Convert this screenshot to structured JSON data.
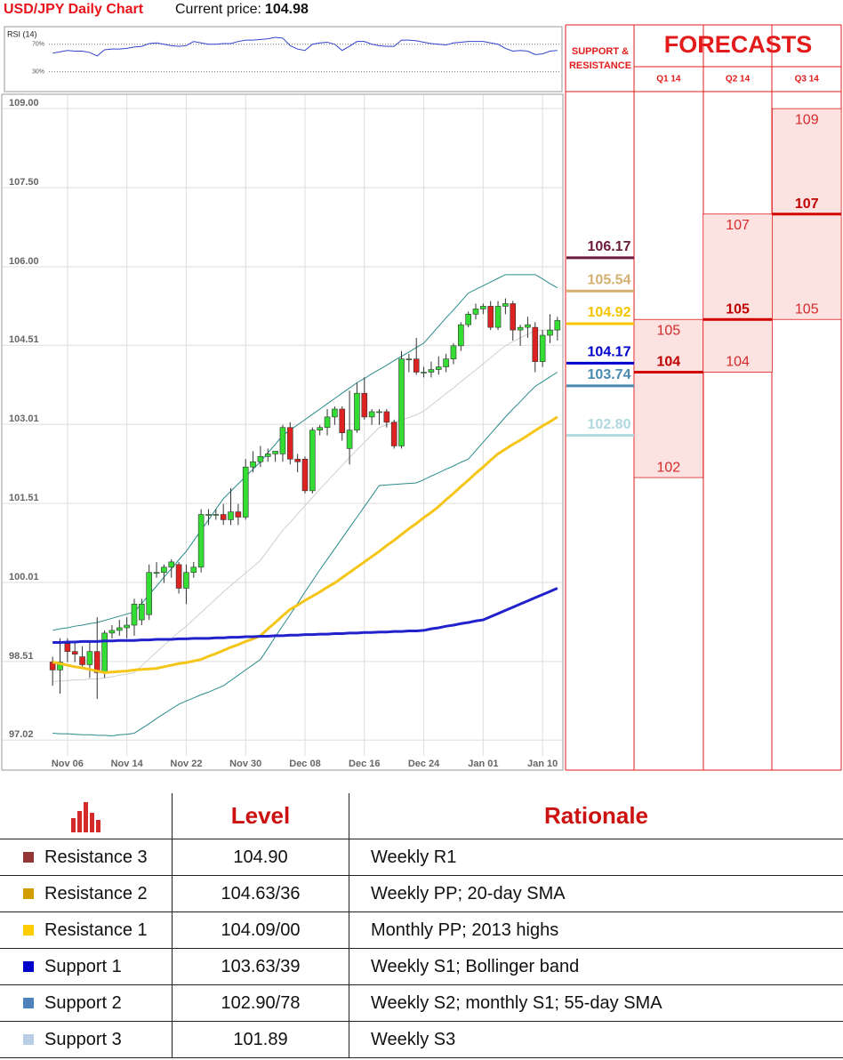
{
  "header": {
    "title": "USD/JPY Daily Chart",
    "price_label": "Current price:",
    "price": 104.98
  },
  "chart_data": [
    {
      "type": "candlestick",
      "categories": [
        null,
        null,
        "Nov 06",
        null,
        null,
        null,
        null,
        null,
        null,
        null,
        "Nov 14",
        null,
        null,
        null,
        null,
        null,
        null,
        null,
        "Nov 22",
        null,
        null,
        null,
        null,
        null,
        null,
        null,
        "Nov 30",
        null,
        null,
        null,
        null,
        null,
        null,
        null,
        "Dec 08",
        null,
        null,
        null,
        null,
        null,
        null,
        null,
        "Dec 16",
        null,
        null,
        null,
        null,
        null,
        null,
        null,
        "Dec 24",
        null,
        null,
        null,
        null,
        null,
        null,
        null,
        "Jan 01",
        null,
        null,
        null,
        null,
        null,
        null,
        null,
        "Jan 10",
        null,
        null
      ],
      "open": [
        98.5,
        98.35,
        98.85,
        98.7,
        98.6,
        98.45,
        98.7,
        98.3,
        99.05,
        99.1,
        99.15,
        99.2,
        99.3,
        99.4,
        100.2,
        100.2,
        100.3,
        100.35,
        99.9,
        100.2,
        100.3,
        101.3,
        101.3,
        101.3,
        101.2,
        101.35,
        101.25,
        102.2,
        102.3,
        102.4,
        102.45,
        102.45,
        102.95,
        102.35,
        102.35,
        101.75,
        102.9,
        102.95,
        103.15,
        103.3,
        102.55,
        102.9,
        103.6,
        103.15,
        103.25,
        103.25,
        103.05,
        102.6,
        104.25,
        104.25,
        104.0,
        104.0,
        104.05,
        104.1,
        104.25,
        104.5,
        104.9,
        105.1,
        105.2,
        105.25,
        104.85,
        105.25,
        105.3,
        104.8,
        104.85,
        104.85,
        104.2,
        104.7,
        104.8
      ],
      "high": [
        98.6,
        98.95,
        98.95,
        98.9,
        98.8,
        98.9,
        99.35,
        99.1,
        99.2,
        99.3,
        99.35,
        99.7,
        99.7,
        100.35,
        100.4,
        100.35,
        100.45,
        100.4,
        100.35,
        100.4,
        101.4,
        101.4,
        101.4,
        101.5,
        101.8,
        101.5,
        102.35,
        102.5,
        102.6,
        102.55,
        102.5,
        103.0,
        103.05,
        102.45,
        102.4,
        102.95,
        103.0,
        103.3,
        103.35,
        103.35,
        103.65,
        103.8,
        103.9,
        103.3,
        103.3,
        103.3,
        103.1,
        104.4,
        104.35,
        104.65,
        104.1,
        104.2,
        104.3,
        104.35,
        104.55,
        104.95,
        105.15,
        105.3,
        105.3,
        105.35,
        105.35,
        105.4,
        105.35,
        104.9,
        105.05,
        104.95,
        104.8,
        105.1,
        105.05
      ],
      "low": [
        98.05,
        97.9,
        98.5,
        98.5,
        98.4,
        98.2,
        97.8,
        98.2,
        98.95,
        99.0,
        98.95,
        99.0,
        99.2,
        99.3,
        100.1,
        100.0,
        100.1,
        99.8,
        99.6,
        100.1,
        100.2,
        101.1,
        101.2,
        101.1,
        101.1,
        101.1,
        101.2,
        102.1,
        102.2,
        102.3,
        102.3,
        102.3,
        102.25,
        102.1,
        101.7,
        101.7,
        102.8,
        102.8,
        103.0,
        102.7,
        102.25,
        102.85,
        103.1,
        103.0,
        103.0,
        102.95,
        102.55,
        102.55,
        104.0,
        103.95,
        103.9,
        103.9,
        103.95,
        104.0,
        104.15,
        104.4,
        104.85,
        105.0,
        105.1,
        104.8,
        104.8,
        105.1,
        104.6,
        104.5,
        104.65,
        104.0,
        104.1,
        104.55,
        104.6
      ],
      "close": [
        98.35,
        98.5,
        98.7,
        98.65,
        98.45,
        98.7,
        98.3,
        99.05,
        99.1,
        99.15,
        99.2,
        99.6,
        99.6,
        100.2,
        100.2,
        100.3,
        100.4,
        99.9,
        100.2,
        100.3,
        101.3,
        101.3,
        101.3,
        101.2,
        101.35,
        101.25,
        102.2,
        102.3,
        102.4,
        102.45,
        102.5,
        102.95,
        102.35,
        102.3,
        101.75,
        102.9,
        102.95,
        103.15,
        103.3,
        102.85,
        102.9,
        103.6,
        103.15,
        103.25,
        103.25,
        103.05,
        102.6,
        104.25,
        104.25,
        104.0,
        104.0,
        104.05,
        104.1,
        104.25,
        104.5,
        104.9,
        105.1,
        105.2,
        105.25,
        104.85,
        105.25,
        105.3,
        104.8,
        104.85,
        104.9,
        104.2,
        104.7,
        104.8,
        104.98
      ],
      "up_color": "#33dd33",
      "down_color": "#dd2222",
      "overlays": [
        {
          "color": "#cfcfcf",
          "width": 1,
          "values": [
            98.13,
            98.14,
            98.15,
            98.16,
            98.16,
            98.18,
            98.18,
            98.2,
            98.22,
            98.25,
            98.27,
            98.3,
            98.43,
            98.56,
            98.69,
            98.82,
            98.94,
            99.07,
            99.18,
            99.31,
            99.44,
            99.57,
            99.7,
            99.83,
            99.95,
            100.07,
            100.19,
            100.31,
            100.43,
            100.62,
            100.81,
            101.0,
            101.15,
            101.31,
            101.47,
            101.62,
            101.78,
            101.93,
            102.08,
            102.23,
            102.38,
            102.53,
            102.67,
            102.81,
            102.95,
            103.0,
            103.05,
            103.09,
            103.14,
            103.19,
            103.26,
            103.37,
            103.48,
            103.6,
            103.7,
            103.82,
            103.93,
            104.04,
            104.16,
            104.27,
            104.39,
            104.5,
            104.58,
            104.65,
            104.72,
            104.79,
            104.8,
            104.8,
            104.8
          ]
        },
        {
          "color": "#2a8a8a",
          "width": 1,
          "values": [
            99.1,
            99.13,
            99.15,
            99.18,
            99.2,
            99.23,
            99.25,
            99.29,
            99.33,
            99.37,
            99.41,
            99.45,
            99.61,
            99.78,
            99.94,
            100.11,
            100.27,
            100.44,
            100.6,
            100.8,
            101.0,
            101.2,
            101.4,
            101.6,
            101.74,
            101.88,
            102.02,
            102.16,
            102.3,
            102.47,
            102.63,
            102.8,
            102.9,
            103.0,
            103.1,
            103.2,
            103.3,
            103.4,
            103.5,
            103.6,
            103.7,
            103.8,
            103.88,
            103.97,
            104.05,
            104.13,
            104.22,
            104.3,
            104.38,
            104.47,
            104.55,
            104.71,
            104.87,
            105.03,
            105.18,
            105.34,
            105.5,
            105.57,
            105.64,
            105.71,
            105.78,
            105.85,
            105.85,
            105.85,
            105.85,
            105.85,
            105.77,
            105.68,
            105.6
          ]
        },
        {
          "color": "#2a8a8a",
          "width": 1,
          "values": [
            97.15,
            97.14,
            97.14,
            97.13,
            97.12,
            97.12,
            97.11,
            97.11,
            97.1,
            97.12,
            97.13,
            97.15,
            97.24,
            97.33,
            97.43,
            97.52,
            97.61,
            97.7,
            97.76,
            97.82,
            97.88,
            97.93,
            97.99,
            98.05,
            98.15,
            98.25,
            98.35,
            98.45,
            98.55,
            98.76,
            98.98,
            99.19,
            99.4,
            99.61,
            99.83,
            100.04,
            100.25,
            100.45,
            100.65,
            100.85,
            101.05,
            101.25,
            101.45,
            101.65,
            101.85,
            101.86,
            101.87,
            101.88,
            101.89,
            101.9,
            101.96,
            102.03,
            102.09,
            102.16,
            102.22,
            102.29,
            102.35,
            102.51,
            102.67,
            102.83,
            102.99,
            103.15,
            103.3,
            103.44,
            103.59,
            103.73,
            103.82,
            103.91,
            104.0
          ]
        },
        {
          "color": "#f5c518",
          "width": 3,
          "values": [
            98.5,
            98.47,
            98.44,
            98.41,
            98.39,
            98.36,
            98.33,
            98.3,
            98.31,
            98.32,
            98.33,
            98.35,
            98.36,
            98.37,
            98.38,
            98.41,
            98.44,
            98.47,
            98.49,
            98.52,
            98.55,
            98.61,
            98.66,
            98.72,
            98.78,
            98.83,
            98.89,
            98.94,
            99.0,
            99.13,
            99.25,
            99.38,
            99.5,
            99.58,
            99.67,
            99.75,
            99.83,
            99.92,
            100.0,
            100.1,
            100.2,
            100.3,
            100.4,
            100.5,
            100.6,
            100.71,
            100.81,
            100.92,
            101.03,
            101.13,
            101.24,
            101.34,
            101.45,
            101.58,
            101.7,
            101.83,
            101.95,
            102.08,
            102.2,
            102.33,
            102.45,
            102.54,
            102.63,
            102.71,
            102.8,
            102.89,
            102.98,
            103.06,
            103.15
          ]
        },
        {
          "color": "#2222cc",
          "width": 3,
          "values": [
            98.87,
            98.87,
            98.88,
            98.88,
            98.89,
            98.89,
            98.89,
            98.9,
            98.9,
            98.91,
            98.91,
            98.91,
            98.92,
            98.92,
            98.93,
            98.93,
            98.93,
            98.94,
            98.94,
            98.95,
            98.95,
            98.95,
            98.96,
            98.96,
            98.97,
            98.97,
            98.98,
            98.98,
            98.99,
            98.99,
            99.0,
            99.0,
            99.01,
            99.01,
            99.02,
            99.02,
            99.03,
            99.03,
            99.04,
            99.04,
            99.05,
            99.05,
            99.06,
            99.06,
            99.07,
            99.07,
            99.08,
            99.08,
            99.09,
            99.09,
            99.1,
            99.13,
            99.15,
            99.18,
            99.2,
            99.23,
            99.25,
            99.28,
            99.3,
            99.36,
            99.42,
            99.48,
            99.54,
            99.6,
            99.66,
            99.72,
            99.78,
            99.84,
            99.9
          ]
        }
      ],
      "ylim": [
        96.45,
        109.07
      ],
      "yticks": [
        {
          "value": 109,
          "label": "109.00"
        },
        {
          "value": 107.5,
          "label": "107.50"
        },
        {
          "value": 106,
          "label": "106.00"
        },
        104.51,
        103.01,
        101.51,
        100.01,
        98.51,
        97.02
      ],
      "grid": true
    },
    {
      "type": "line",
      "title": "RSI (14)",
      "color": "#3344cc",
      "values": [
        57,
        59,
        61,
        60,
        60,
        58,
        53,
        62,
        63,
        63,
        64,
        66,
        67,
        71,
        72,
        70,
        68,
        67,
        68,
        74,
        72,
        70,
        70,
        71,
        71,
        74,
        76,
        76,
        77,
        78,
        80,
        79,
        68,
        63,
        61,
        70,
        72,
        73,
        70,
        61,
        67,
        74,
        74,
        70,
        68,
        67,
        67,
        76,
        76,
        75,
        73,
        71,
        70,
        69,
        72,
        73,
        74,
        74,
        74,
        72,
        70,
        64,
        60,
        61,
        60,
        55,
        56,
        60,
        61
      ],
      "ylim": [
        5,
        93
      ],
      "yticks": [
        {
          "value": 70,
          "label": "70%"
        },
        {
          "value": 30,
          "label": "30%"
        }
      ]
    }
  ],
  "forecasts": {
    "sr_title": "SUPPORT & RESISTANCE",
    "title": "FORECASTS",
    "levels": [
      {
        "value": 106.17,
        "color": "#6b1a3a"
      },
      {
        "value": 105.54,
        "color": "#d4b070"
      },
      {
        "value": 104.92,
        "color": "#f5c400"
      },
      {
        "value": 104.17,
        "color": "#0000cc"
      },
      {
        "value": 103.74,
        "color": "#4a8ab0"
      },
      {
        "value": 102.8,
        "label": "102.80",
        "color": "#b0d8e0"
      }
    ],
    "quarters": [
      {
        "label": "Q1 14",
        "high": 105,
        "target": 104,
        "low": 102
      },
      {
        "label": "Q2 14",
        "high": 107,
        "target": 105,
        "low": 104
      },
      {
        "label": "Q3 14",
        "high": 109,
        "target": 107,
        "low": 105
      }
    ]
  },
  "table": {
    "header": [
      "Level",
      "Rationale"
    ],
    "rows": [
      {
        "name": "Resistance 3",
        "color": "#943634",
        "level": "104.90",
        "rationale": "Weekly R1"
      },
      {
        "name": "Resistance 2",
        "color": "#d09c00",
        "level": "104.63/36",
        "rationale": "Weekly PP; 20-day SMA"
      },
      {
        "name": "Resistance 1",
        "color": "#ffcc00",
        "level": "104.09/00",
        "rationale": "Monthly PP; 2013 highs"
      },
      {
        "name": "Support 1",
        "color": "#0000cc",
        "level": "103.63/39",
        "rationale": "Weekly S1; Bollinger band"
      },
      {
        "name": "Support 2",
        "color": "#4f81bd",
        "level": "102.90/78",
        "rationale": "Weekly S2; monthly S1; 55-day SMA"
      },
      {
        "name": "Support 3",
        "color": "#b9cde5",
        "level": "101.89",
        "rationale": "Weekly S3"
      }
    ]
  }
}
